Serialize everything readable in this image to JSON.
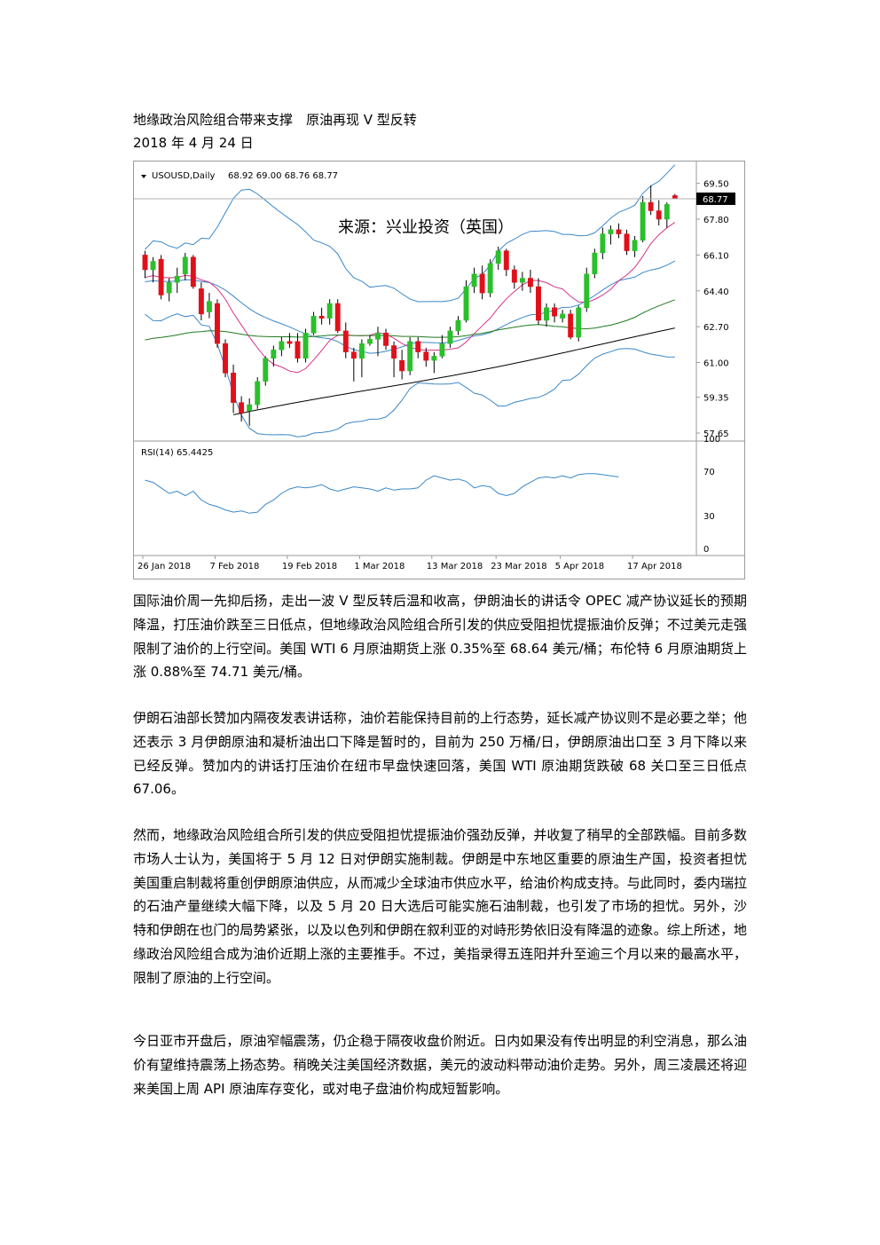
{
  "document": {
    "title": "地缘政治风险组合带来支撑　原油再现 V 型反转",
    "date": "2018 年 4 月 24 日",
    "paragraphs": [
      "国际油价周一先抑后扬，走出一波 V 型反转后温和收高，伊朗油长的讲话令 OPEC 减产协议延长的预期降温，打压油价跌至三日低点，但地缘政治风险组合所引发的供应受阻担忧提振油价反弹；不过美元走强限制了油价的上行空间。美国 WTI 6 月原油期货上涨 0.35%至 68.64 美元/桶；布伦特 6 月原油期货上涨 0.88%至 74.71 美元/桶。",
      "伊朗石油部长赞加内隔夜发表讲话称，油价若能保持目前的上行态势，延长减产协议则不是必要之举；他还表示 3 月伊朗原油和凝析油出口下降是暂时的，目前为 250 万桶/日，伊朗原油出口至 3 月下降以来已经反弹。赞加内的讲话打压油价在纽市早盘快速回落，美国 WTI 原油期货跌破 68 关口至三日低点 67.06。",
      "然而，地缘政治风险组合所引发的供应受阻担忧提振油价强劲反弹，并收复了稍早的全部跌幅。目前多数市场人士认为，美国将于 5 月 12 日对伊朗实施制裁。伊朗是中东地区重要的原油生产国，投资者担忧美国重启制裁将重创伊朗原油供应，从而减少全球油市供应水平，给油价构成支持。与此同时，委内瑞拉的石油产量继续大幅下降，以及 5 月 20 日大选后可能实施石油制裁，也引发了市场的担忧。另外，沙特和伊朗在也门的局势紧张，以及以色列和伊朗在叙利亚的对峙形势依旧没有降温的迹象。综上所述，地缘政治风险组合成为油价近期上涨的主要推手。不过，美指录得五连阳并升至逾三个月以来的最高水平，限制了原油的上行空间。",
      "今日亚市开盘后，原油窄幅震荡，仍企稳于隔夜收盘价附近。日内如果没有传出明显的利空消息，那么油价有望维持震荡上扬态势。稍晚关注美国经济数据，美元的波动料带动油价走势。另外，周三凌晨还将迎来美国上周 API 原油库存变化，或对电子盘油价构成短暂影响。"
    ]
  },
  "chart_data": {
    "type": "candlestick",
    "symbol_label": "USOUSD,Daily",
    "ohlc_label": "68.92 69.00 68.76 68.77",
    "watermark": "来源：兴业投资（英国）",
    "current_price_label": "68.77",
    "current_price": 68.77,
    "price_axis": {
      "ticks": [
        "69.50",
        "67.80",
        "66.10",
        "64.40",
        "62.70",
        "61.00",
        "59.35",
        "57.65"
      ],
      "ylim": [
        57.4,
        70.2
      ]
    },
    "rsi": {
      "label": "RSI(14) 65.4425",
      "ticks": [
        "100",
        "70",
        "30",
        "0"
      ],
      "ylim": [
        0,
        100
      ],
      "values": [
        62,
        60,
        55,
        50,
        52,
        48,
        52,
        44,
        40,
        38,
        35,
        33,
        34,
        32,
        33,
        40,
        44,
        50,
        54,
        56,
        55,
        56,
        58,
        54,
        52,
        54,
        56,
        55,
        54,
        52,
        55,
        53,
        54,
        54,
        55,
        62,
        66,
        64,
        62,
        63,
        61,
        55,
        57,
        56,
        50,
        48,
        50,
        56,
        60,
        64,
        65,
        64,
        66,
        64,
        67,
        68,
        68,
        67,
        66,
        65
      ]
    },
    "x_labels": [
      "26 Jan 2018",
      "7 Feb 2018",
      "19 Feb 2018",
      "1 Mar 2018",
      "13 Mar 2018",
      "23 Mar 2018",
      "5 Apr 2018",
      "17 Apr 2018"
    ],
    "x_label_index": [
      0,
      9,
      18,
      27,
      36,
      44,
      52,
      61
    ],
    "candles": [
      [
        66.1,
        66.3,
        65.0,
        65.4
      ],
      [
        65.4,
        66.0,
        64.8,
        65.8
      ],
      [
        65.9,
        66.1,
        64.0,
        64.2
      ],
      [
        64.3,
        65.0,
        63.9,
        64.8
      ],
      [
        64.8,
        65.5,
        64.3,
        65.1
      ],
      [
        65.2,
        66.2,
        64.9,
        66.0
      ],
      [
        66.0,
        66.1,
        64.5,
        64.6
      ],
      [
        64.5,
        64.8,
        63.0,
        63.3
      ],
      [
        63.4,
        64.3,
        63.1,
        63.9
      ],
      [
        63.8,
        64.0,
        61.7,
        61.9
      ],
      [
        61.9,
        62.1,
        60.3,
        60.5
      ],
      [
        60.5,
        60.9,
        58.6,
        59.1
      ],
      [
        59.1,
        59.4,
        58.2,
        58.6
      ],
      [
        58.7,
        59.3,
        58.0,
        59.0
      ],
      [
        59.0,
        60.3,
        58.8,
        60.1
      ],
      [
        60.1,
        61.3,
        59.9,
        61.2
      ],
      [
        61.2,
        61.8,
        60.8,
        61.6
      ],
      [
        61.6,
        62.2,
        61.3,
        62.0
      ],
      [
        62.0,
        62.4,
        61.7,
        61.9
      ],
      [
        62.0,
        62.4,
        61.0,
        61.2
      ],
      [
        61.2,
        62.6,
        61.0,
        62.4
      ],
      [
        62.4,
        63.4,
        62.3,
        63.2
      ],
      [
        63.2,
        63.6,
        62.8,
        63.1
      ],
      [
        63.1,
        64.0,
        62.8,
        63.8
      ],
      [
        63.8,
        64.0,
        62.4,
        62.5
      ],
      [
        62.5,
        62.9,
        61.2,
        61.5
      ],
      [
        61.5,
        61.7,
        60.1,
        61.2
      ],
      [
        61.2,
        62.1,
        60.3,
        61.9
      ],
      [
        61.9,
        62.3,
        61.8,
        62.1
      ],
      [
        62.1,
        62.7,
        61.3,
        62.4
      ],
      [
        62.4,
        62.6,
        61.6,
        61.8
      ],
      [
        61.8,
        62.0,
        60.3,
        61.2
      ],
      [
        61.1,
        61.6,
        60.2,
        60.6
      ],
      [
        60.6,
        62.2,
        60.4,
        62.0
      ],
      [
        62.0,
        62.2,
        61.2,
        61.5
      ],
      [
        61.5,
        61.7,
        60.8,
        61.1
      ],
      [
        61.1,
        61.5,
        60.5,
        61.3
      ],
      [
        61.3,
        62.3,
        61.2,
        61.9
      ],
      [
        61.9,
        62.7,
        61.7,
        62.5
      ],
      [
        62.5,
        63.2,
        62.3,
        63.0
      ],
      [
        63.0,
        64.9,
        62.9,
        64.6
      ],
      [
        64.6,
        65.5,
        64.3,
        65.2
      ],
      [
        65.2,
        65.6,
        64.0,
        64.3
      ],
      [
        64.3,
        65.9,
        64.1,
        65.7
      ],
      [
        65.7,
        66.5,
        65.4,
        66.3
      ],
      [
        66.3,
        66.4,
        65.1,
        65.4
      ],
      [
        65.4,
        65.6,
        64.5,
        64.8
      ],
      [
        64.8,
        65.3,
        64.4,
        65.0
      ],
      [
        65.0,
        65.4,
        64.3,
        64.6
      ],
      [
        64.6,
        65.0,
        62.8,
        63.0
      ],
      [
        63.0,
        63.8,
        62.7,
        63.6
      ],
      [
        63.6,
        63.8,
        62.9,
        63.2
      ],
      [
        63.1,
        63.5,
        62.9,
        63.3
      ],
      [
        63.3,
        63.5,
        62.1,
        62.2
      ],
      [
        62.2,
        63.7,
        62.0,
        63.6
      ],
      [
        63.6,
        65.5,
        63.4,
        65.2
      ],
      [
        65.2,
        66.4,
        65.0,
        66.2
      ],
      [
        66.2,
        67.4,
        65.9,
        67.1
      ],
      [
        67.1,
        67.5,
        66.6,
        67.3
      ],
      [
        67.3,
        67.6,
        66.9,
        67.1
      ],
      [
        67.1,
        67.3,
        66.1,
        66.3
      ],
      [
        66.3,
        67.0,
        66.0,
        66.8
      ],
      [
        66.8,
        68.9,
        66.7,
        68.6
      ],
      [
        68.6,
        69.4,
        68.0,
        68.2
      ],
      [
        68.2,
        68.7,
        67.5,
        67.8
      ],
      [
        67.8,
        68.6,
        67.4,
        68.5
      ],
      [
        68.92,
        69.0,
        68.76,
        68.77
      ]
    ]
  }
}
